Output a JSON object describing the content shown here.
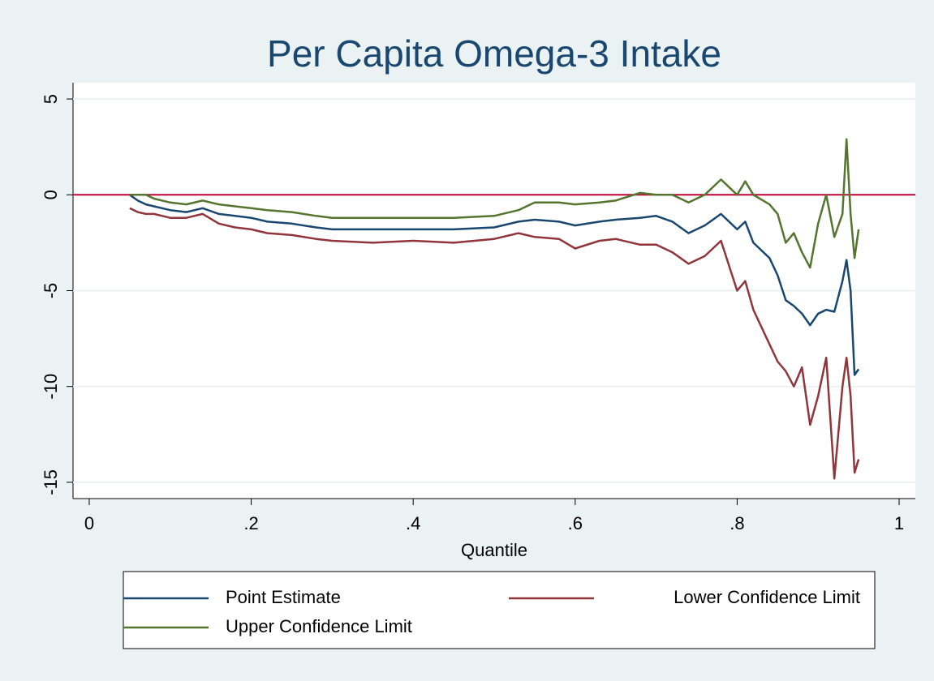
{
  "chart_data": {
    "type": "line",
    "title": "Per Capita Omega-3 Intake",
    "x_label": "Quantile",
    "x": [
      0.05,
      0.06,
      0.07,
      0.08,
      0.1,
      0.12,
      0.14,
      0.16,
      0.18,
      0.2,
      0.22,
      0.25,
      0.28,
      0.3,
      0.35,
      0.4,
      0.45,
      0.5,
      0.53,
      0.55,
      0.58,
      0.6,
      0.63,
      0.65,
      0.68,
      0.7,
      0.72,
      0.74,
      0.76,
      0.78,
      0.8,
      0.81,
      0.82,
      0.84,
      0.85,
      0.86,
      0.87,
      0.88,
      0.89,
      0.9,
      0.91,
      0.92,
      0.93,
      0.935,
      0.94,
      0.945,
      0.95
    ],
    "series": [
      {
        "name": "Point Estimate",
        "color": "#1a476f",
        "values": [
          0,
          -0.3,
          -0.5,
          -0.6,
          -0.8,
          -0.9,
          -0.7,
          -1.0,
          -1.1,
          -1.2,
          -1.4,
          -1.5,
          -1.7,
          -1.8,
          -1.8,
          -1.8,
          -1.8,
          -1.7,
          -1.4,
          -1.3,
          -1.4,
          -1.6,
          -1.4,
          -1.3,
          -1.2,
          -1.1,
          -1.4,
          -2.0,
          -1.6,
          -1.0,
          -1.8,
          -1.4,
          -2.5,
          -3.3,
          -4.2,
          -5.5,
          -5.8,
          -6.2,
          -6.8,
          -6.2,
          -6.0,
          -6.1,
          -4.5,
          -3.4,
          -5.0,
          -9.4,
          -9.1
        ]
      },
      {
        "name": "Lower Confidence Limit",
        "color": "#90353b",
        "values": [
          -0.7,
          -0.9,
          -1.0,
          -1.0,
          -1.2,
          -1.2,
          -1.0,
          -1.5,
          -1.7,
          -1.8,
          -2.0,
          -2.1,
          -2.3,
          -2.4,
          -2.5,
          -2.4,
          -2.5,
          -2.3,
          -2.0,
          -2.2,
          -2.3,
          -2.8,
          -2.4,
          -2.3,
          -2.6,
          -2.6,
          -3.0,
          -3.6,
          -3.2,
          -2.4,
          -5.0,
          -4.5,
          -6.0,
          -7.8,
          -8.7,
          -9.2,
          -10.0,
          -9.0,
          -12.0,
          -10.5,
          -8.5,
          -14.8,
          -10.0,
          -8.5,
          -10.5,
          -14.5,
          -13.8
        ]
      },
      {
        "name": "Upper Confidence Limit",
        "color": "#55752f",
        "values": [
          0,
          0,
          0,
          -0.2,
          -0.4,
          -0.5,
          -0.3,
          -0.5,
          -0.6,
          -0.7,
          -0.8,
          -0.9,
          -1.1,
          -1.2,
          -1.2,
          -1.2,
          -1.2,
          -1.1,
          -0.8,
          -0.4,
          -0.4,
          -0.5,
          -0.4,
          -0.3,
          0.1,
          0.0,
          0.0,
          -0.4,
          0.0,
          0.8,
          0.0,
          0.7,
          0.0,
          -0.5,
          -1.0,
          -2.5,
          -2.0,
          -3.0,
          -3.8,
          -1.5,
          0.0,
          -2.2,
          -1.0,
          2.9,
          -1.0,
          -3.3,
          -1.8
        ]
      }
    ],
    "xlim": [
      -0.02,
      1.02
    ],
    "ylim": [
      -15.85,
      5.85
    ],
    "xticks": [
      0,
      {
        "value": 0.2,
        "label": ".2"
      },
      {
        "value": 0.4,
        "label": ".4"
      },
      {
        "value": 0.6,
        "label": ".6"
      },
      {
        "value": 0.8,
        "label": ".8"
      },
      1
    ],
    "yticks": [
      5,
      0,
      -5,
      -10,
      -15
    ],
    "grid": true,
    "reference_line": {
      "value": 0,
      "color": "#c10534"
    }
  }
}
